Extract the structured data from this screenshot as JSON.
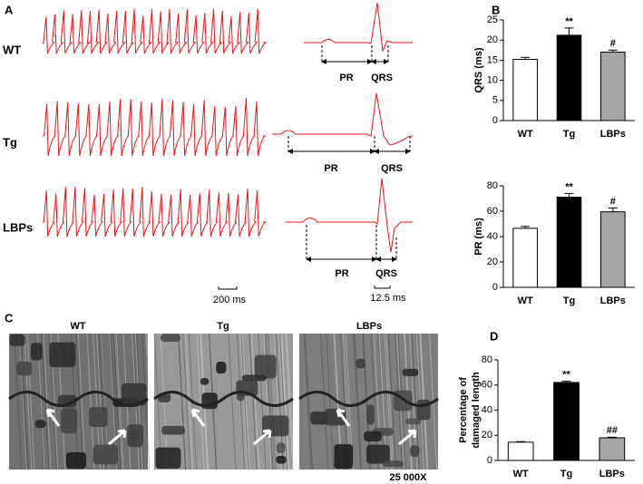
{
  "panel_labels": [
    "A",
    "B",
    "C",
    "D"
  ],
  "ecg": {
    "groups": [
      "WT",
      "Tg",
      "LBPs"
    ],
    "intervals": [
      "PR",
      "QRS"
    ],
    "scale_bars": [
      "200 ms",
      "12.5 ms"
    ]
  },
  "em": {
    "groups": [
      "WT",
      "Tg",
      "LBPs"
    ],
    "magnification": "25 000X"
  },
  "chart_data": [
    {
      "type": "bar",
      "ylabel": "QRS (ms)",
      "categories": [
        "WT",
        "Tg",
        "LBPs"
      ],
      "values": [
        15.2,
        21.2,
        17.0
      ],
      "errors": [
        0.5,
        1.8,
        0.5
      ],
      "colors": [
        "#ffffff",
        "#000000",
        "#a6a6a6"
      ],
      "ylim": [
        0,
        25
      ],
      "yticks": [
        0,
        5,
        10,
        15,
        20,
        25
      ],
      "annotations": [
        {
          "x": "Tg",
          "text": "**"
        },
        {
          "x": "LBPs",
          "text": "#"
        }
      ]
    },
    {
      "type": "bar",
      "ylabel": "PR (ms)",
      "categories": [
        "WT",
        "Tg",
        "LBPs"
      ],
      "values": [
        46.5,
        71,
        59.5
      ],
      "errors": [
        1.5,
        3,
        3
      ],
      "colors": [
        "#ffffff",
        "#000000",
        "#a6a6a6"
      ],
      "ylim": [
        0,
        80
      ],
      "yticks": [
        0,
        20,
        40,
        60,
        80
      ],
      "annotations": [
        {
          "x": "Tg",
          "text": "**"
        },
        {
          "x": "LBPs",
          "text": "#"
        }
      ]
    },
    {
      "type": "bar",
      "ylabel": [
        "Percentage of",
        "damaged length"
      ],
      "categories": [
        "WT",
        "Tg",
        "LBPs"
      ],
      "values": [
        14.5,
        62,
        18
      ],
      "errors": [
        0.5,
        1,
        0.5
      ],
      "colors": [
        "#ffffff",
        "#000000",
        "#a6a6a6"
      ],
      "ylim": [
        0,
        80
      ],
      "yticks": [
        0,
        20,
        40,
        60,
        80
      ],
      "annotations": [
        {
          "x": "Tg",
          "text": "**"
        },
        {
          "x": "LBPs",
          "text": "##"
        }
      ]
    }
  ]
}
